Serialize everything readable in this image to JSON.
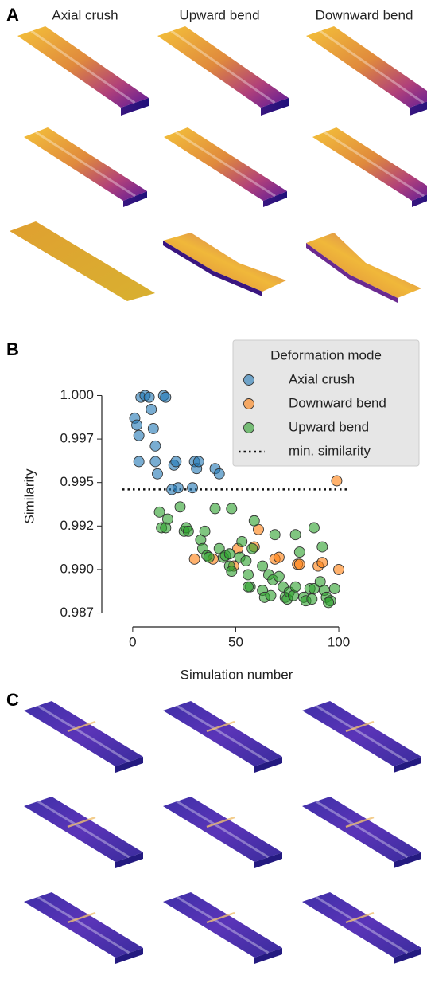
{
  "figure": {
    "panel_labels": [
      "A",
      "B",
      "C"
    ],
    "column_titles": [
      "Axial crush",
      "Upward bend",
      "Downward bend"
    ]
  },
  "chart_data": {
    "type": "scatter",
    "xlabel": "Simulation number",
    "ylabel": "Similarity",
    "legend_title": "Deformation mode",
    "legend": "upper right",
    "xlim": [
      -15,
      105
    ],
    "ylim": [
      0.9867,
      1.0008
    ],
    "xticks": [
      0,
      50,
      100
    ],
    "yticks": [
      {
        "value": 0.9875,
        "label": "0.987"
      },
      {
        "value": 0.99,
        "label": "0.990"
      },
      {
        "value": 0.9925,
        "label": "0.992"
      },
      {
        "value": 0.995,
        "label": "0.995"
      },
      {
        "value": 0.9975,
        "label": "0.997"
      },
      {
        "value": 1.0,
        "label": "1.000"
      }
    ],
    "series": [
      {
        "name": "Axial crush",
        "color": "#1f77b4",
        "x": [
          1,
          2,
          3,
          3,
          4,
          6,
          8,
          9,
          10,
          11,
          11,
          12,
          15,
          16,
          19,
          20,
          21,
          22,
          29,
          30,
          31,
          32,
          40,
          42
        ],
        "values": [
          0.9987,
          0.9983,
          0.9977,
          0.9962,
          0.9999,
          1.0,
          0.9999,
          0.9992,
          0.9981,
          0.9971,
          0.9962,
          0.9955,
          1.0,
          0.9999,
          0.9946,
          0.996,
          0.9962,
          0.9947,
          0.9947,
          0.9962,
          0.9958,
          0.9962,
          0.9958,
          0.9955
        ]
      },
      {
        "name": "Downward bend",
        "color": "#ff7f0e",
        "x": [
          30,
          39,
          49,
          51,
          59,
          61,
          69,
          71,
          80,
          81,
          90,
          92,
          100,
          99
        ],
        "values": [
          0.9906,
          0.9906,
          0.9902,
          0.9912,
          0.9913,
          0.9923,
          0.9906,
          0.9907,
          0.9903,
          0.9903,
          0.9902,
          0.9904,
          0.99,
          0.9951
        ]
      },
      {
        "name": "Upward bend",
        "color": "#2ca02c",
        "x": [
          13,
          14,
          16,
          17,
          23,
          25,
          26,
          27,
          33,
          34,
          36,
          35,
          37,
          40,
          42,
          44,
          45,
          47,
          48,
          47,
          48,
          53,
          52,
          55,
          56,
          57,
          56,
          58,
          59,
          63,
          63,
          64,
          66,
          67,
          68,
          69,
          71,
          73,
          74,
          75,
          76,
          78,
          79,
          79,
          81,
          83,
          84,
          86,
          87,
          88,
          88,
          91,
          92,
          93,
          94,
          96,
          98,
          95
        ],
        "values": [
          0.9933,
          0.9924,
          0.9924,
          0.9929,
          0.9936,
          0.9922,
          0.9924,
          0.9922,
          0.9917,
          0.9912,
          0.9908,
          0.9922,
          0.9907,
          0.9935,
          0.9912,
          0.9907,
          0.9908,
          0.9902,
          0.9899,
          0.9909,
          0.9935,
          0.9916,
          0.9907,
          0.9905,
          0.9897,
          0.989,
          0.989,
          0.9912,
          0.9928,
          0.9902,
          0.9888,
          0.9884,
          0.9897,
          0.9885,
          0.9894,
          0.992,
          0.9896,
          0.989,
          0.9884,
          0.9883,
          0.9887,
          0.9885,
          0.992,
          0.989,
          0.991,
          0.9884,
          0.9882,
          0.9889,
          0.9883,
          0.9889,
          0.9924,
          0.9893,
          0.9913,
          0.9888,
          0.9884,
          0.9882,
          0.9889,
          0.9881
        ]
      }
    ],
    "reference_line": {
      "name": "min. similarity",
      "value": 0.9946
    }
  }
}
